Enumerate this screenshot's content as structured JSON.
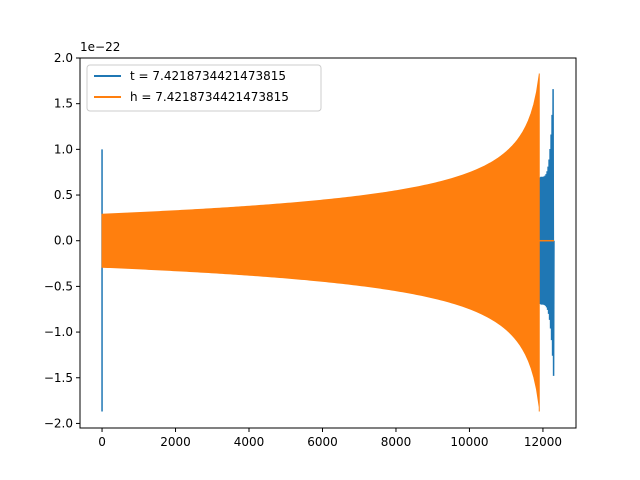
{
  "chart_data": {
    "type": "line",
    "title": "",
    "xlabel": "",
    "ylabel": "",
    "y_offset_text": "1e−22",
    "xlim": [
      -600,
      12900
    ],
    "ylim": [
      -2.05,
      2.0
    ],
    "x_ticks": [
      0,
      2000,
      4000,
      6000,
      8000,
      10000,
      12000
    ],
    "y_ticks": [
      -2.0,
      -1.5,
      -1.0,
      -0.5,
      0.0,
      0.5,
      1.0,
      1.5,
      2.0
    ],
    "x_tick_labels": [
      "0",
      "2000",
      "4000",
      "6000",
      "8000",
      "10000",
      "12000"
    ],
    "y_tick_labels": [
      "−2.0",
      "−1.5",
      "−1.0",
      "−0.5",
      "0.0",
      "0.5",
      "1.0",
      "1.5",
      "2.0"
    ],
    "grid": false,
    "legend_position": "upper-left",
    "series": [
      {
        "name": "t = 7.4218734421473815",
        "color": "#1f77b4",
        "start_spike": {
          "x": 0,
          "max": 1.0,
          "min": -1.87
        },
        "body": {
          "x_start": 0,
          "x_end": 11950,
          "amp_start": 0.29,
          "amp_end": 0.7
        },
        "tail": {
          "x_start": 11950,
          "x_end": 12300,
          "amp_start": 0.7,
          "peak_x": 12290,
          "peak_max": 1.83,
          "peak_min": -1.48
        },
        "end_value": 0
      },
      {
        "name": "h = 7.4218734421473815",
        "color": "#ff7f0e",
        "body": {
          "x_start": 0,
          "x_end": 11900,
          "amp_start": 0.29,
          "amp_end": 1.82
        },
        "peak": {
          "x": 11900,
          "max": 1.83,
          "min": -1.87
        },
        "after": {
          "x_start": 11900,
          "x_end": 12300,
          "value": 0
        }
      }
    ]
  }
}
